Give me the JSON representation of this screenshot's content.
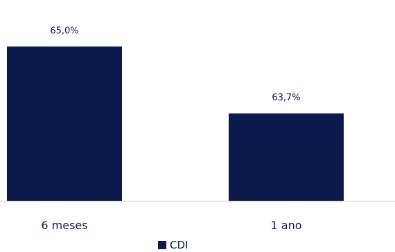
{
  "chart_data": {
    "type": "bar",
    "categories": [
      "6 meses",
      "1 ano"
    ],
    "series": [
      {
        "name": "CDI",
        "values": [
          65.0,
          63.7
        ],
        "labels": [
          "65,0%",
          "63,7%"
        ]
      }
    ],
    "ylim": [
      62,
      65.3
    ],
    "grid": false,
    "legend": "bottom-center",
    "colors": {
      "bar": "#0b1a4a",
      "text": "#0b1a4a",
      "axis": "#c8c8c8"
    }
  }
}
